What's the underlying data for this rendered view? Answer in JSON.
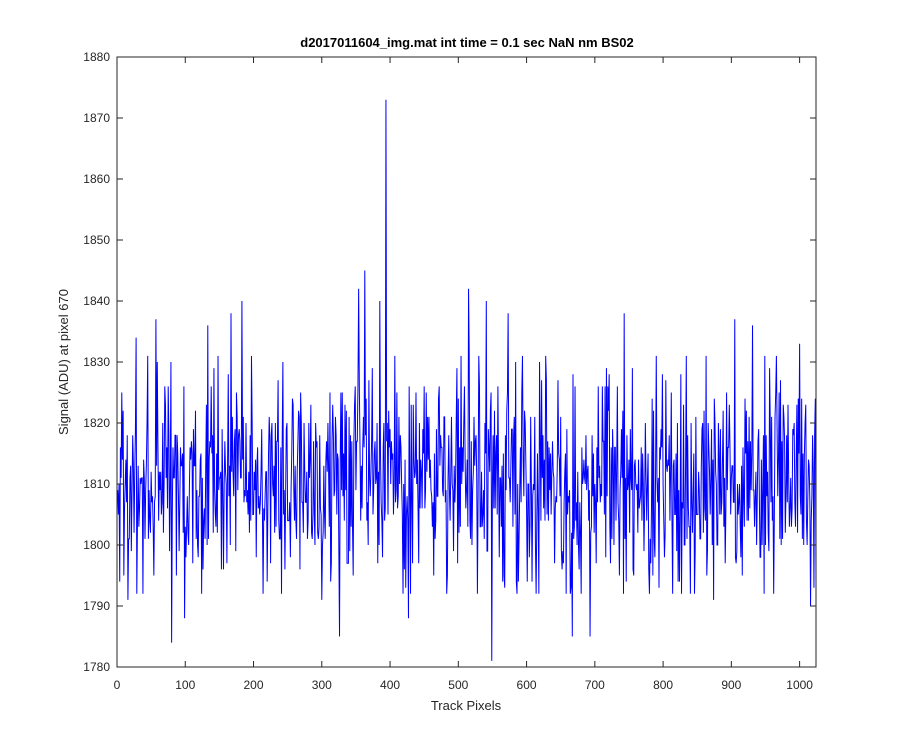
{
  "chart_data": {
    "type": "line",
    "title": "d2017011604_img.mat int time = 0.1 sec  NaN nm BS02",
    "xlabel": "Track Pixels",
    "ylabel": "Signal (ADU) at pixel 670",
    "xlim": [
      0,
      1024
    ],
    "ylim": [
      1780,
      1880
    ],
    "xticks": [
      0,
      100,
      200,
      300,
      400,
      500,
      600,
      700,
      800,
      900,
      1000
    ],
    "yticks": [
      1780,
      1790,
      1800,
      1810,
      1820,
      1830,
      1840,
      1850,
      1860,
      1870,
      1880
    ],
    "grid": false,
    "line_color": "#0000ff",
    "series": [
      {
        "x_start": 1,
        "x_step": 1,
        "count": 1024,
        "mean": 1810,
        "noise_std": 9,
        "min_value": 1781,
        "max_value": 1873,
        "peaks": [
          {
            "x": 394,
            "y": 1873
          },
          {
            "x": 363,
            "y": 1845
          },
          {
            "x": 354,
            "y": 1842
          },
          {
            "x": 385,
            "y": 1840
          },
          {
            "x": 515,
            "y": 1842
          },
          {
            "x": 541,
            "y": 1840
          },
          {
            "x": 573,
            "y": 1838
          },
          {
            "x": 743,
            "y": 1838
          },
          {
            "x": 57,
            "y": 1837
          },
          {
            "x": 133,
            "y": 1836
          },
          {
            "x": 167,
            "y": 1838
          },
          {
            "x": 183,
            "y": 1840
          },
          {
            "x": 28,
            "y": 1834
          },
          {
            "x": 905,
            "y": 1837
          },
          {
            "x": 931,
            "y": 1836
          },
          {
            "x": 1000,
            "y": 1833
          }
        ],
        "troughs": [
          {
            "x": 549,
            "y": 1781
          },
          {
            "x": 326,
            "y": 1785
          },
          {
            "x": 80,
            "y": 1784
          },
          {
            "x": 667,
            "y": 1785
          },
          {
            "x": 693,
            "y": 1785
          },
          {
            "x": 427,
            "y": 1788
          },
          {
            "x": 99,
            "y": 1788
          },
          {
            "x": 1016,
            "y": 1790
          },
          {
            "x": 16,
            "y": 1791
          },
          {
            "x": 300,
            "y": 1791
          },
          {
            "x": 874,
            "y": 1791
          }
        ]
      }
    ]
  }
}
